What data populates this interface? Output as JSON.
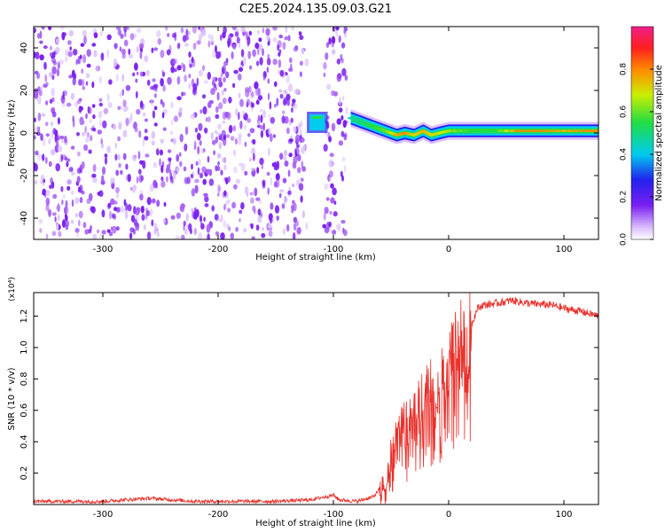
{
  "title": "C2E5.2024.135.09.03.G21",
  "colors": {
    "series_line": "#e8302a",
    "spectrogram_noise": "#7a1ff0",
    "axis": "#000000"
  },
  "chart_data": [
    {
      "type": "heatmap",
      "title": "C2E5.2024.135.09.03.G21",
      "xlabel": "Height of straight line (km)",
      "ylabel": "Frequency (Hz)",
      "xlim": [
        -360,
        130
      ],
      "ylim": [
        -50,
        50
      ],
      "xticks": [
        -300,
        -200,
        -100,
        0,
        100
      ],
      "yticks": [
        -40,
        -20,
        0,
        20,
        40
      ],
      "colorbar": {
        "label": "Normalized spectral amplitude",
        "range": [
          0,
          1
        ],
        "ticks": [
          "0.0",
          "0.2",
          "0.4",
          "0.6",
          "0.8"
        ],
        "colormap": "rainbow (white-purple-blue-cyan-green-yellow-red-magenta)"
      },
      "regions": [
        {
          "x": [
            -360,
            -123
          ],
          "frequency": [
            -50,
            50
          ],
          "amplitude": 0.15,
          "description_kind": "broadband noise"
        },
        {
          "x": [
            -108,
            -88
          ],
          "frequency": [
            -50,
            50
          ],
          "amplitude": 0.15,
          "description_kind": "broadband noise"
        },
        {
          "x": [
            -123,
            -105
          ],
          "frequency": [
            0,
            10
          ],
          "amplitude": 0.35,
          "description_kind": "narrow signal"
        }
      ],
      "signal_ridge": {
        "x": [
          -85,
          -75,
          -65,
          -55,
          -45,
          -38,
          -30,
          -22,
          -15,
          -8,
          0,
          20,
          40,
          60,
          80,
          100,
          120,
          130
        ],
        "frequency": [
          7,
          5,
          3,
          1,
          -1,
          0,
          -1,
          1,
          -1,
          0,
          1,
          1,
          1,
          1,
          1,
          1,
          1,
          1
        ],
        "amplitude": [
          0.45,
          0.5,
          0.55,
          0.6,
          0.75,
          0.8,
          0.7,
          0.75,
          0.7,
          0.7,
          0.65,
          0.55,
          0.55,
          0.8,
          0.8,
          0.75,
          0.8,
          0.8
        ]
      },
      "grid": false
    },
    {
      "type": "line",
      "xlabel": "Height of straight line (km)",
      "ylabel": "SNR (10 * v/v)",
      "y_multiplier": "(x10⁴)",
      "xlim": [
        -360,
        130
      ],
      "ylim": [
        0,
        1.35
      ],
      "xticks": [
        -300,
        -200,
        -100,
        0,
        100
      ],
      "yticks": [
        0.2,
        0.4,
        0.6,
        0.8,
        1.0,
        1.2
      ],
      "grid": false,
      "series": [
        {
          "x": [
            -360,
            -300,
            -260,
            -220,
            -150,
            -120,
            -100,
            -95,
            -80,
            -65,
            -55,
            -48,
            -42,
            -38,
            -30,
            -25,
            -18,
            -10,
            -5,
            0,
            5,
            10,
            15,
            20,
            25,
            30,
            40,
            55,
            70,
            90,
            100,
            115,
            130
          ],
          "y": [
            0.02,
            0.02,
            0.04,
            0.02,
            0.02,
            0.03,
            0.06,
            0.03,
            0.02,
            0.05,
            0.15,
            0.4,
            0.6,
            0.5,
            0.55,
            0.65,
            0.75,
            0.7,
            0.85,
            0.9,
            1.0,
            1.05,
            0.95,
            1.15,
            1.25,
            1.27,
            1.28,
            1.3,
            1.28,
            1.27,
            1.25,
            1.23,
            1.2
          ]
        }
      ]
    }
  ]
}
